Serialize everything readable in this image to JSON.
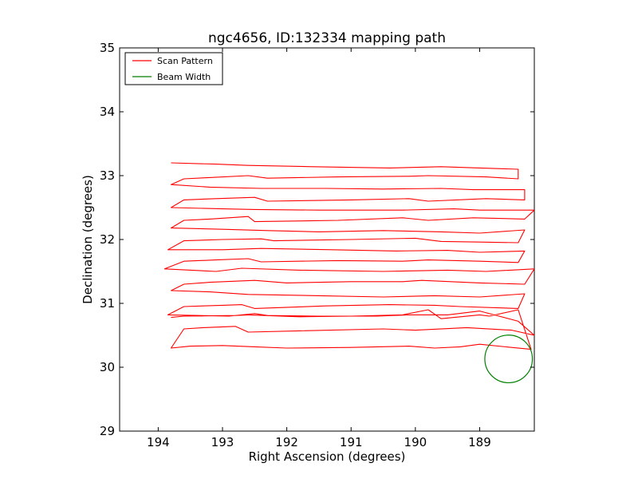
{
  "chart_data": {
    "type": "line",
    "title": "ngc4656, ID:132334 mapping path",
    "xlabel": "Right Ascension (degrees)",
    "ylabel": "Declination (degrees)",
    "xlim": [
      194.6,
      188.15
    ],
    "ylim": [
      29,
      35
    ],
    "xticks": [
      "194",
      "193",
      "192",
      "191",
      "190",
      "189"
    ],
    "yticks": [
      "29",
      "30",
      "31",
      "32",
      "33",
      "34",
      "35"
    ],
    "legend": {
      "placement": "top-left",
      "entries": [
        {
          "label": "Scan Pattern",
          "color": "#ff0000"
        },
        {
          "label": "Beam Width",
          "color": "#008000"
        }
      ]
    },
    "series": [
      {
        "name": "Scan Pattern",
        "color": "#ff0000",
        "x": [
          193.8,
          193.6,
          192.8,
          192.6,
          191.8,
          191.0,
          190.2,
          189.8,
          189.6,
          189.0,
          188.85,
          188.4,
          188.2,
          189.0,
          189.3,
          189.7,
          190.1,
          191.0,
          192.0,
          192.5,
          193.0,
          193.5,
          193.8,
          193.6,
          193.3,
          192.8,
          192.6,
          191.8,
          190.5,
          190.0,
          189.2,
          188.5,
          188.15,
          188.4,
          189.0,
          189.5,
          190.1,
          190.6,
          191.5,
          192.3,
          192.5,
          192.9,
          193.85,
          193.6,
          193.0,
          192.7,
          192.5,
          191.4,
          190.4,
          189.7,
          189.3,
          188.4,
          188.3,
          189.0,
          189.7,
          190.5,
          191.5,
          192.6,
          193.2,
          193.8,
          193.6,
          193.2,
          192.5,
          192.0,
          191.0,
          190.2,
          189.9,
          189.0,
          188.3,
          188.15,
          188.9,
          189.5,
          190.5,
          191.8,
          192.7,
          193.1,
          193.9,
          193.6,
          193.1,
          192.6,
          192.4,
          191.2,
          190.2,
          189.8,
          189.0,
          188.4,
          188.3,
          189.0,
          189.5,
          190.3,
          191.3,
          192.4,
          193.0,
          193.85,
          193.6,
          193.0,
          192.4,
          192.2,
          191.0,
          190.0,
          189.6,
          189.0,
          188.4,
          188.3,
          189.0,
          189.6,
          190.5,
          191.5,
          192.3,
          193.0,
          193.8,
          193.6,
          193.2,
          192.6,
          192.5,
          191.2,
          190.2,
          189.8,
          189.1,
          188.3,
          188.15,
          189.0,
          189.4,
          190.2,
          191.5,
          192.5,
          193.0,
          193.8,
          193.6,
          193.1,
          192.5,
          192.3,
          191.0,
          190.1,
          189.8,
          188.9,
          188.3,
          188.3,
          189.1,
          189.6,
          190.5,
          191.4,
          192.4,
          193.2,
          193.8,
          193.6,
          193.2,
          192.6,
          192.3,
          191.2,
          190.1,
          189.8,
          188.9,
          188.4,
          188.4,
          189.0,
          189.6,
          190.4,
          191.6,
          192.6,
          193.1,
          193.8
        ],
        "y": [
          30.78,
          30.8,
          30.81,
          30.82,
          30.79,
          30.8,
          30.82,
          30.9,
          30.76,
          30.82,
          30.8,
          30.9,
          30.28,
          30.36,
          30.32,
          30.3,
          30.33,
          30.31,
          30.3,
          30.32,
          30.34,
          30.33,
          30.3,
          30.6,
          30.62,
          30.64,
          30.55,
          30.57,
          30.6,
          30.58,
          30.62,
          30.58,
          30.5,
          30.72,
          30.88,
          30.82,
          30.82,
          30.8,
          30.8,
          30.81,
          30.84,
          30.8,
          30.82,
          30.95,
          30.97,
          30.98,
          30.92,
          30.96,
          30.98,
          30.97,
          30.95,
          30.92,
          31.15,
          31.1,
          31.12,
          31.1,
          31.12,
          31.14,
          31.18,
          31.2,
          31.3,
          31.33,
          31.36,
          31.32,
          31.34,
          31.34,
          31.36,
          31.32,
          31.3,
          31.54,
          31.5,
          31.52,
          31.5,
          31.52,
          31.55,
          31.5,
          31.54,
          31.66,
          31.68,
          31.7,
          31.65,
          31.67,
          31.66,
          31.68,
          31.66,
          31.64,
          31.82,
          31.8,
          31.83,
          31.82,
          31.84,
          31.86,
          31.84,
          31.84,
          31.98,
          32.0,
          32.01,
          31.98,
          32.0,
          32.02,
          31.97,
          31.96,
          31.95,
          32.15,
          32.1,
          32.12,
          32.14,
          32.12,
          32.14,
          32.16,
          32.18,
          32.3,
          32.32,
          32.36,
          32.28,
          32.3,
          32.34,
          32.3,
          32.34,
          32.32,
          32.46,
          32.46,
          32.48,
          32.46,
          32.46,
          32.47,
          32.48,
          32.5,
          32.62,
          32.64,
          32.66,
          32.6,
          32.62,
          32.64,
          32.6,
          32.64,
          32.62,
          32.78,
          32.78,
          32.8,
          32.79,
          32.8,
          32.8,
          32.82,
          32.86,
          32.95,
          32.97,
          33.0,
          32.96,
          32.98,
          32.99,
          33.0,
          32.98,
          32.95,
          33.1,
          33.12,
          33.14,
          33.12,
          33.14,
          33.16,
          33.18,
          33.2
        ]
      },
      {
        "name": "Beam Width",
        "color": "#008000",
        "shape": "circle",
        "center": [
          188.55,
          30.13
        ],
        "radius": 0.37
      }
    ],
    "grid": false
  }
}
